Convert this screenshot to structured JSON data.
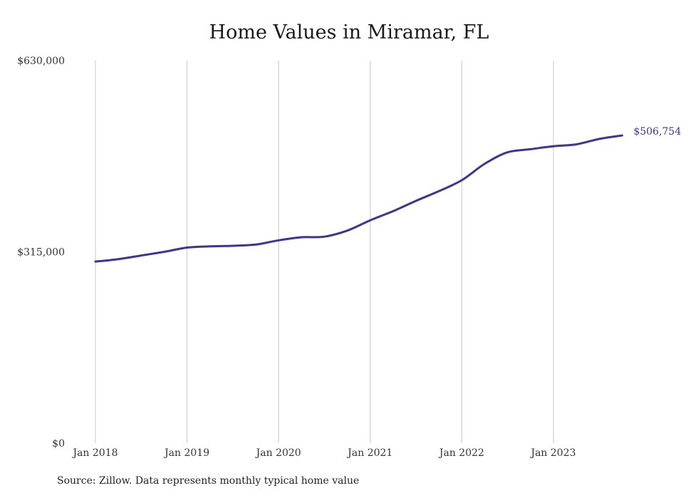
{
  "title": "Home Values in Miramar, FL",
  "source": "Source: Zillow. Data represents monthly typical home value",
  "colors": {
    "line": "#3b3597",
    "grid": "#c8c8c8",
    "text": "#333333"
  },
  "chart_data": {
    "type": "line",
    "title": "Home Values in Miramar, FL",
    "xlabel": "",
    "ylabel": "",
    "grid": "vertical",
    "ylim": [
      0,
      630000
    ],
    "y_ticks": [
      {
        "value": 0,
        "label": "$0"
      },
      {
        "value": 315000,
        "label": "$315,000"
      },
      {
        "value": 630000,
        "label": "$630,000"
      }
    ],
    "x_ticks": [
      "Jan 2018",
      "Jan 2019",
      "Jan 2020",
      "Jan 2021",
      "Jan 2022",
      "Jan 2023"
    ],
    "end_label": "$506,754",
    "series": [
      {
        "points": [
          [
            "2018-01",
            299000
          ],
          [
            "2018-04",
            303000
          ],
          [
            "2018-07",
            309000
          ],
          [
            "2018-10",
            315000
          ],
          [
            "2019-01",
            322000
          ],
          [
            "2019-04",
            324000
          ],
          [
            "2019-07",
            325000
          ],
          [
            "2019-10",
            327000
          ],
          [
            "2020-01",
            334000
          ],
          [
            "2020-04",
            339000
          ],
          [
            "2020-07",
            340000
          ],
          [
            "2020-10",
            350000
          ],
          [
            "2021-01",
            367000
          ],
          [
            "2021-04",
            382000
          ],
          [
            "2021-07",
            399000
          ],
          [
            "2021-10",
            415000
          ],
          [
            "2022-01",
            433000
          ],
          [
            "2022-04",
            460000
          ],
          [
            "2022-07",
            479000
          ],
          [
            "2022-10",
            484000
          ],
          [
            "2023-01",
            489000
          ],
          [
            "2023-04",
            492000
          ],
          [
            "2023-07",
            501000
          ],
          [
            "2023-10",
            506754
          ]
        ]
      }
    ]
  }
}
